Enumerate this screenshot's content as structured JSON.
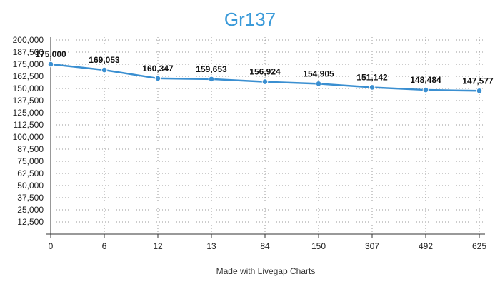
{
  "chart_data": {
    "type": "line",
    "title": "Gr137",
    "xlabel": "",
    "ylabel": "",
    "categories": [
      "0",
      "6",
      "12",
      "13",
      "84",
      "150",
      "307",
      "492",
      "625"
    ],
    "values": [
      175000,
      169053,
      160347,
      159653,
      156924,
      154905,
      151142,
      148484,
      147577
    ],
    "data_labels": [
      "175,000",
      "169,053",
      "160,347",
      "159,653",
      "156,924",
      "154,905",
      "151,142",
      "148,484",
      "147,577"
    ],
    "y_ticks": [
      "12,500",
      "25,000",
      "37,500",
      "50,000",
      "62,500",
      "75,000",
      "87,500",
      "100,000",
      "112,500",
      "125,000",
      "137,500",
      "150,000",
      "162,500",
      "175,000",
      "187,500",
      "200,000"
    ],
    "y_tick_values": [
      12500,
      25000,
      37500,
      50000,
      62500,
      75000,
      87500,
      100000,
      112500,
      125000,
      137500,
      150000,
      162500,
      175000,
      187500,
      200000
    ],
    "ylim": [
      0,
      200000
    ],
    "grid": true,
    "legend": "none",
    "colors": {
      "line": "#3a8fd1",
      "marker_fill": "#3a8fd1",
      "marker_stroke": "#ffffff",
      "title": "#3a9ad9"
    }
  },
  "footer": {
    "credit": "Made with Livegap Charts"
  }
}
